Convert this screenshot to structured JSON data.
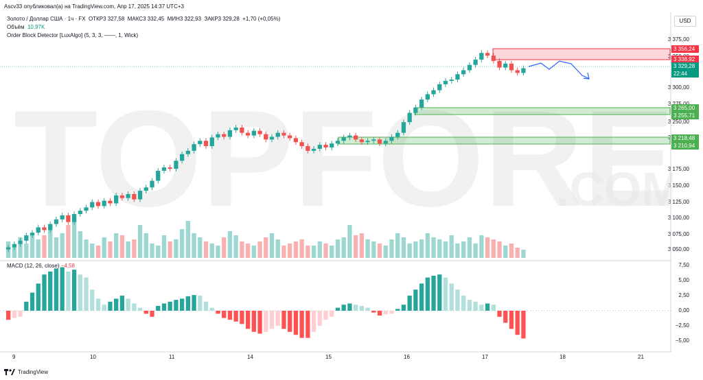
{
  "banner": "Ascv33 опубликовал(а) на TradingView.com, Апр 17, 2025 14:37 UTC+3",
  "legend": {
    "symbol": "Золото / Доллар США · 1ч · FX",
    "open": "ОТКР3 327,58",
    "high": "МАКС3 332,45",
    "low": "МИН3 322,93",
    "close": "ЗАКР3 329,28",
    "change": "+1,70 (+0,05%)",
    "volume_label": "Объём",
    "volume_value": "10,97K",
    "indicator": "Order Block Detector [LuxAlgo] (5, 3, 3, ——, 1, Wick)"
  },
  "macd": {
    "label": "MACD (12, 26, close)",
    "value": "−4,58"
  },
  "watermark": {
    "logo_text": "TOPFOREX",
    "suffix": ".COM"
  },
  "price_scale": {
    "currency": "USD",
    "ticks": [
      "3 375,00",
      "3 350,00",
      "3 300,00",
      "3 275,00",
      "3 250,00",
      "3 225,00",
      "3 175,00",
      "3 150,00",
      "3 125,00",
      "3 100,00",
      "3 075,00",
      "3 050,00"
    ],
    "macd_ticks": [
      "7,50",
      "5,00",
      "2,50",
      "0,00",
      "−2,50",
      "−5,00"
    ],
    "labels": {
      "ob_top": "3 356,24",
      "ob_bottom": "3 338,92",
      "last_price": "3 329,28",
      "countdown": "22:44",
      "ob2_top": "3 265,00",
      "ob2_bottom": "3 255,71",
      "ob3_top": "3 218,48",
      "ob3_bottom": "3 210,94"
    }
  },
  "time_axis": [
    "9",
    "10",
    "11",
    "14",
    "15",
    "16",
    "17",
    "18",
    "21"
  ],
  "footer": {
    "brand": "TradingView"
  },
  "colors": {
    "up": "#26a69a",
    "down": "#ef5350",
    "bear_ob": "#f23645",
    "bull_ob": "#4caf50",
    "projection": "#2962ff"
  },
  "chart_data": {
    "type": "candlestick",
    "price_axis": {
      "min": 3040,
      "max": 3380
    },
    "closes": [
      3060,
      3065,
      3070,
      3078,
      3082,
      3090,
      3086,
      3095,
      3102,
      3108,
      3098,
      3110,
      3115,
      3120,
      3128,
      3122,
      3130,
      3126,
      3138,
      3134,
      3140,
      3132,
      3145,
      3150,
      3160,
      3175,
      3180,
      3178,
      3190,
      3200,
      3205,
      3215,
      3220,
      3212,
      3225,
      3230,
      3226,
      3236,
      3240,
      3232,
      3228,
      3235,
      3230,
      3222,
      3226,
      3232,
      3228,
      3224,
      3218,
      3212,
      3205,
      3208,
      3214,
      3210,
      3216,
      3220,
      3225,
      3228,
      3222,
      3218,
      3220,
      3222,
      3216,
      3220,
      3226,
      3232,
      3248,
      3262,
      3270,
      3282,
      3290,
      3296,
      3305,
      3310,
      3312,
      3320,
      3326,
      3334,
      3342,
      3352,
      3348,
      3340,
      3330,
      3336,
      3326,
      3322,
      3329
    ],
    "volume_relative": [
      0.4,
      0.3,
      0.5,
      0.35,
      0.6,
      0.45,
      0.55,
      0.7,
      0.5,
      0.6,
      0.8,
      0.9,
      0.65,
      0.45,
      0.35,
      0.3,
      0.5,
      0.4,
      0.6,
      0.55,
      0.4,
      0.45,
      0.8,
      0.6,
      0.35,
      0.3,
      0.55,
      0.4,
      0.45,
      0.7,
      0.9,
      0.6,
      0.5,
      0.4,
      0.35,
      0.3,
      0.5,
      0.65,
      0.55,
      0.4,
      0.35,
      0.3,
      0.4,
      0.5,
      0.6,
      0.45,
      0.3,
      0.35,
      0.4,
      0.45,
      0.3,
      0.3,
      0.4,
      0.35,
      0.3,
      0.45,
      0.5,
      0.8,
      0.55,
      0.6,
      0.45,
      0.4,
      0.35,
      0.3,
      0.45,
      0.6,
      0.5,
      0.35,
      0.4,
      0.45,
      0.6,
      0.5,
      0.45,
      0.4,
      0.55,
      0.35,
      0.4,
      0.5,
      0.35,
      0.55,
      0.5,
      0.45,
      0.4,
      0.3,
      0.35,
      0.25,
      0.2
    ],
    "macd_hist": [
      -1.5,
      -1.2,
      -1.0,
      1.5,
      3.0,
      4.5,
      6.0,
      6.5,
      7.0,
      7.2,
      6.5,
      6.8,
      6.0,
      5.5,
      3.5,
      2.0,
      1.0,
      1.5,
      2.0,
      2.5,
      2.0,
      1.2,
      0.5,
      -0.5,
      -1.0,
      0.8,
      1.2,
      1.5,
      1.8,
      2.0,
      2.4,
      2.6,
      2.5,
      1.5,
      0.5,
      -0.5,
      -1.2,
      -1.5,
      -1.8,
      -2.2,
      -3.0,
      -3.5,
      -3.8,
      -3.5,
      -3.0,
      -2.5,
      -3.0,
      -3.5,
      -4.0,
      -4.5,
      -4.5,
      -3.5,
      -2.5,
      -1.5,
      -1.0,
      0.5,
      1.0,
      1.2,
      1.0,
      0.8,
      0.5,
      -0.3,
      -0.8,
      -0.6,
      -0.5,
      0.3,
      1.0,
      2.5,
      3.5,
      4.5,
      5.5,
      5.8,
      6.0,
      5.5,
      4.5,
      3.5,
      2.5,
      1.8,
      1.5,
      1.0,
      1.2,
      1.0,
      -1.0,
      -2.0,
      -3.0,
      -4.0,
      -4.6
    ]
  }
}
